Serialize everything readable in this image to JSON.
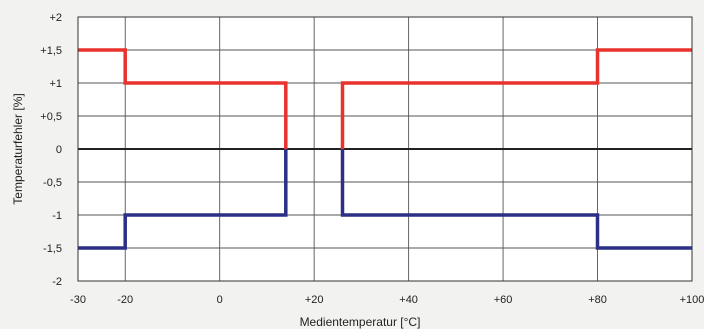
{
  "chart_data": {
    "type": "line",
    "xlabel": "Medientemperatur [°C]",
    "ylabel": "Temperaturfehler [%]",
    "xlim": [
      -30,
      100
    ],
    "ylim": [
      -2,
      2
    ],
    "x_ticks": [
      {
        "value": -30,
        "label": "-30"
      },
      {
        "value": -20,
        "label": "-20"
      },
      {
        "value": 0,
        "label": "0"
      },
      {
        "value": 20,
        "label": "+20"
      },
      {
        "value": 40,
        "label": "+40"
      },
      {
        "value": 60,
        "label": "+60"
      },
      {
        "value": 80,
        "label": "+80"
      },
      {
        "value": 100,
        "label": "+100"
      }
    ],
    "y_ticks": [
      {
        "value": 2,
        "label": "+2"
      },
      {
        "value": 1.5,
        "label": "+1,5"
      },
      {
        "value": 1,
        "label": "+1"
      },
      {
        "value": 0.5,
        "label": "+0,5"
      },
      {
        "value": 0,
        "label": "0"
      },
      {
        "value": -0.5,
        "label": "-0,5"
      },
      {
        "value": -1,
        "label": "-1"
      },
      {
        "value": -1.5,
        "label": "-1,5"
      },
      {
        "value": -2,
        "label": "-2"
      }
    ],
    "grid": true,
    "series": [
      {
        "color": "#e8322e",
        "segments": [
          [
            [
              -30,
              1.5
            ],
            [
              -20,
              1.5
            ],
            [
              -20,
              1
            ],
            [
              14,
              1
            ],
            [
              14,
              0
            ]
          ],
          [
            [
              26,
              0
            ],
            [
              26,
              1
            ],
            [
              80,
              1
            ],
            [
              80,
              1.5
            ],
            [
              100,
              1.5
            ]
          ]
        ]
      },
      {
        "color": "#2b2f86",
        "segments": [
          [
            [
              -30,
              -1.5
            ],
            [
              -20,
              -1.5
            ],
            [
              -20,
              -1
            ],
            [
              14,
              -1
            ],
            [
              14,
              0
            ]
          ],
          [
            [
              26,
              0
            ],
            [
              26,
              -1
            ],
            [
              80,
              -1
            ],
            [
              80,
              -1.5
            ],
            [
              100,
              -1.5
            ]
          ]
        ]
      }
    ]
  }
}
